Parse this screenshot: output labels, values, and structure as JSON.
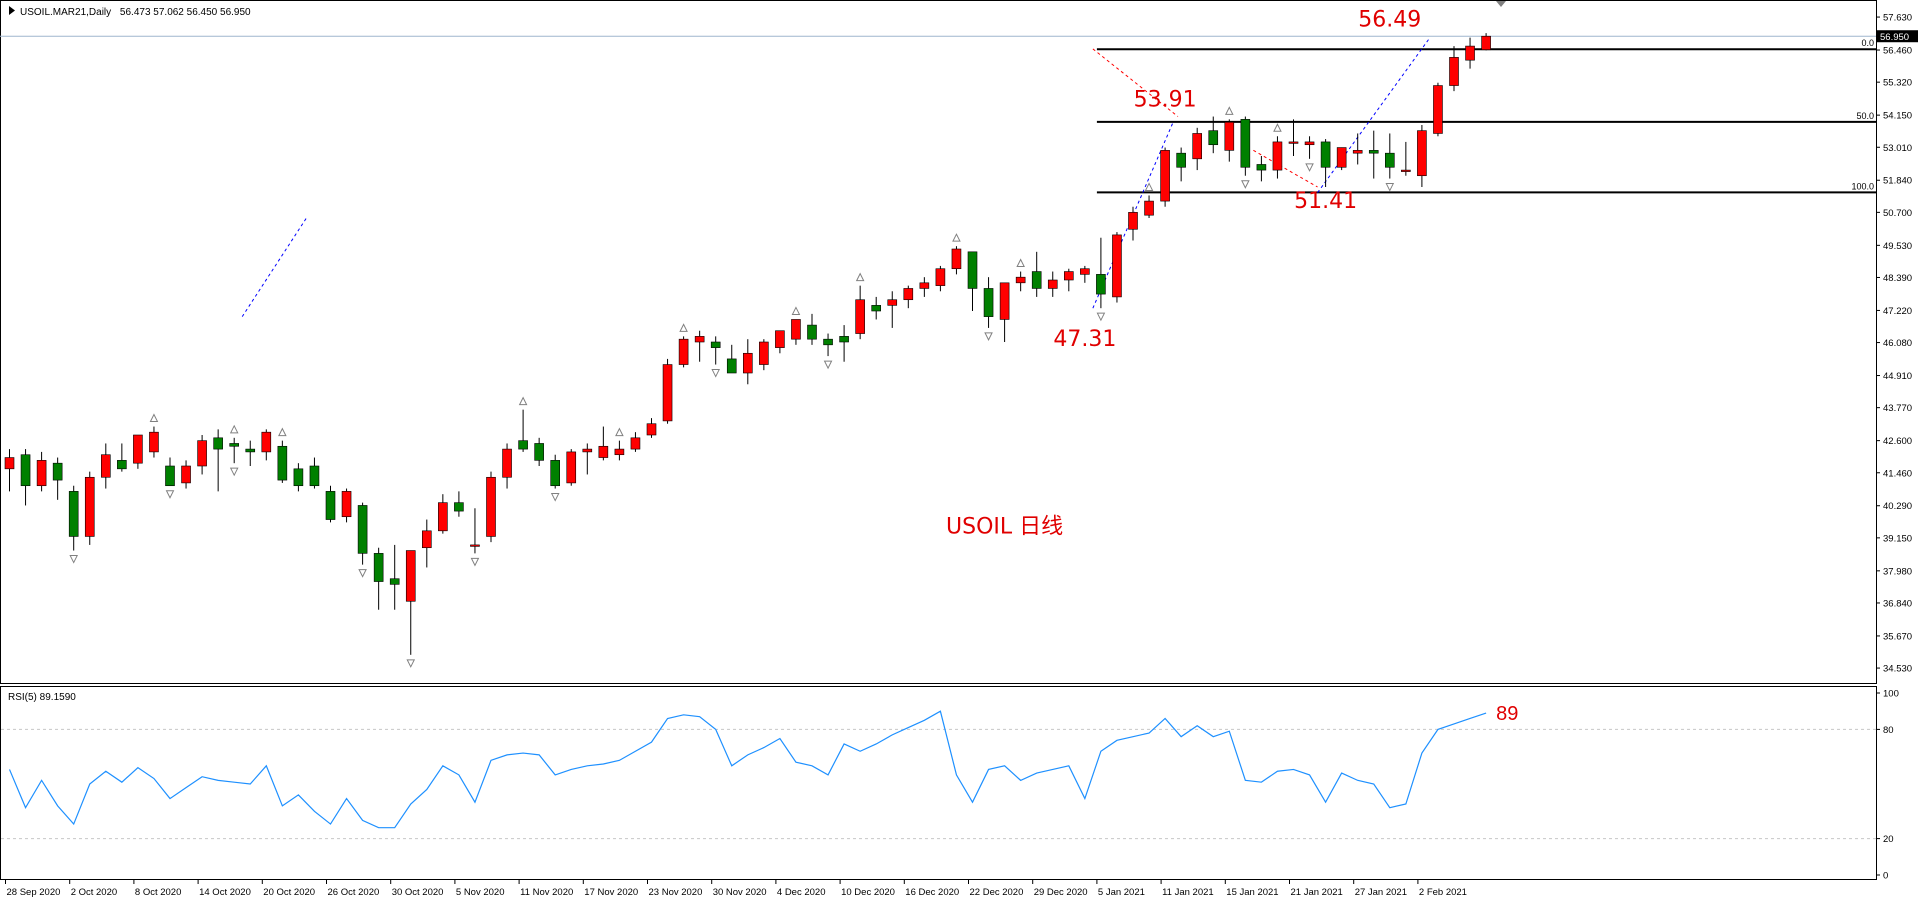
{
  "header": {
    "symbol": "USOIL.MAR21,Daily",
    "ohlc": "56.473 57.062 56.450 56.950"
  },
  "colors": {
    "bull": "#ff0000",
    "bear": "#008000",
    "wick": "#000000",
    "fib": "#000000",
    "rsi": "#1e90ff",
    "grid": "#c8c8c8",
    "annotation": "#e00000",
    "trend": "#0000ff",
    "fractal": "#808080",
    "price_line": "#9fb6cd"
  },
  "chart_data": [
    {
      "type": "candlestick",
      "current_price": 56.95,
      "current_price_label": "56.950",
      "ylim": [
        34.0,
        58.2
      ],
      "yticks": [
        57.63,
        56.46,
        55.32,
        54.15,
        53.01,
        51.84,
        50.7,
        49.53,
        48.39,
        47.22,
        46.08,
        44.91,
        43.77,
        42.6,
        41.46,
        40.29,
        39.15,
        37.98,
        36.84,
        35.67,
        34.53
      ],
      "ytick_labels": [
        "57.630",
        "56.460",
        "55.320",
        "54.150",
        "53.010",
        "51.840",
        "50.700",
        "49.530",
        "48.390",
        "47.220",
        "46.080",
        "44.910",
        "43.770",
        "42.600",
        "41.460",
        "40.290",
        "39.150",
        "37.980",
        "36.840",
        "35.670",
        "34.530"
      ],
      "xtick_labels": [
        "28 Sep 2020",
        "2 Oct 2020",
        "8 Oct 2020",
        "14 Oct 2020",
        "20 Oct 2020",
        "26 Oct 2020",
        "30 Oct 2020",
        "5 Nov 2020",
        "11 Nov 2020",
        "17 Nov 2020",
        "23 Nov 2020",
        "30 Nov 2020",
        "4 Dec 2020",
        "10 Dec 2020",
        "16 Dec 2020",
        "22 Dec 2020",
        "29 Dec 2020",
        "5 Jan 2021",
        "11 Jan 2021",
        "15 Jan 2021",
        "21 Jan 2021",
        "27 Jan 2021",
        "2 Feb 2021"
      ],
      "xtick_index": [
        0,
        4,
        8,
        12,
        16,
        20,
        24,
        28,
        32,
        36,
        40,
        44,
        48,
        52,
        56,
        60,
        64,
        68,
        72,
        76,
        80,
        84,
        88
      ],
      "candles": [
        {
          "d": "28 Sep 2020",
          "o": 41.6,
          "h": 42.3,
          "l": 40.8,
          "c": 42.0
        },
        {
          "d": "29 Sep 2020",
          "o": 42.1,
          "h": 42.3,
          "l": 40.3,
          "c": 41.0
        },
        {
          "d": "30 Sep 2020",
          "o": 41.0,
          "h": 42.2,
          "l": 40.8,
          "c": 41.9
        },
        {
          "d": "1 Oct 2020",
          "o": 41.8,
          "h": 42.0,
          "l": 40.5,
          "c": 41.2
        },
        {
          "d": "2 Oct 2020",
          "o": 40.8,
          "h": 41.0,
          "l": 38.7,
          "c": 39.2
        },
        {
          "d": "5 Oct 2020",
          "o": 39.2,
          "h": 41.5,
          "l": 38.9,
          "c": 41.3
        },
        {
          "d": "6 Oct 2020",
          "o": 41.3,
          "h": 42.5,
          "l": 40.9,
          "c": 42.1
        },
        {
          "d": "7 Oct 2020",
          "o": 41.9,
          "h": 42.5,
          "l": 41.5,
          "c": 41.6
        },
        {
          "d": "8 Oct 2020",
          "o": 41.8,
          "h": 42.8,
          "l": 41.6,
          "c": 42.8
        },
        {
          "d": "9 Oct 2020",
          "o": 42.2,
          "h": 43.1,
          "l": 42.0,
          "c": 42.9
        },
        {
          "d": "12 Oct 2020",
          "o": 41.7,
          "h": 42.0,
          "l": 41.0,
          "c": 41.0
        },
        {
          "d": "13 Oct 2020",
          "o": 41.1,
          "h": 41.9,
          "l": 40.9,
          "c": 41.7
        },
        {
          "d": "14 Oct 2020",
          "o": 41.7,
          "h": 42.8,
          "l": 41.4,
          "c": 42.6
        },
        {
          "d": "15 Oct 2020",
          "o": 42.7,
          "h": 43.0,
          "l": 40.8,
          "c": 42.3
        },
        {
          "d": "16 Oct 2020",
          "o": 42.5,
          "h": 42.7,
          "l": 41.8,
          "c": 42.4
        },
        {
          "d": "19 Oct 2020",
          "o": 42.3,
          "h": 42.6,
          "l": 41.7,
          "c": 42.2
        },
        {
          "d": "20 Oct 2020",
          "o": 42.2,
          "h": 43.0,
          "l": 41.9,
          "c": 42.9
        },
        {
          "d": "21 Oct 2020",
          "o": 42.4,
          "h": 42.6,
          "l": 41.1,
          "c": 41.2
        },
        {
          "d": "22 Oct 2020",
          "o": 41.6,
          "h": 41.8,
          "l": 40.8,
          "c": 41.0
        },
        {
          "d": "23 Oct 2020",
          "o": 41.7,
          "h": 42.0,
          "l": 40.9,
          "c": 41.0
        },
        {
          "d": "26 Oct 2020",
          "o": 40.8,
          "h": 41.0,
          "l": 39.7,
          "c": 39.8
        },
        {
          "d": "27 Oct 2020",
          "o": 39.9,
          "h": 40.9,
          "l": 39.7,
          "c": 40.8
        },
        {
          "d": "28 Oct 2020",
          "o": 40.3,
          "h": 40.4,
          "l": 38.2,
          "c": 38.6
        },
        {
          "d": "29 Oct 2020",
          "o": 38.6,
          "h": 38.8,
          "l": 36.6,
          "c": 37.6
        },
        {
          "d": "30 Oct 2020",
          "o": 37.7,
          "h": 38.9,
          "l": 36.6,
          "c": 37.5
        },
        {
          "d": "2 Nov 2020",
          "o": 36.9,
          "h": 38.7,
          "l": 35.0,
          "c": 38.7
        },
        {
          "d": "3 Nov 2020",
          "o": 38.8,
          "h": 39.8,
          "l": 38.1,
          "c": 39.4
        },
        {
          "d": "4 Nov 2020",
          "o": 39.4,
          "h": 40.7,
          "l": 39.3,
          "c": 40.4
        },
        {
          "d": "5 Nov 2020",
          "o": 40.4,
          "h": 40.8,
          "l": 39.9,
          "c": 40.1
        },
        {
          "d": "6 Nov 2020",
          "o": 38.9,
          "h": 40.2,
          "l": 38.6,
          "c": 38.9
        },
        {
          "d": "9 Nov 2020",
          "o": 39.2,
          "h": 41.5,
          "l": 39.0,
          "c": 41.3
        },
        {
          "d": "10 Nov 2020",
          "o": 41.3,
          "h": 42.5,
          "l": 40.9,
          "c": 42.3
        },
        {
          "d": "11 Nov 2020",
          "o": 42.6,
          "h": 43.7,
          "l": 42.2,
          "c": 42.3
        },
        {
          "d": "12 Nov 2020",
          "o": 42.5,
          "h": 42.7,
          "l": 41.7,
          "c": 41.9
        },
        {
          "d": "13 Nov 2020",
          "o": 41.9,
          "h": 42.1,
          "l": 40.9,
          "c": 41.0
        },
        {
          "d": "16 Nov 2020",
          "o": 41.1,
          "h": 42.3,
          "l": 41.0,
          "c": 42.2
        },
        {
          "d": "17 Nov 2020",
          "o": 42.2,
          "h": 42.5,
          "l": 41.4,
          "c": 42.3
        },
        {
          "d": "18 Nov 2020",
          "o": 42.0,
          "h": 43.1,
          "l": 41.9,
          "c": 42.4
        },
        {
          "d": "19 Nov 2020",
          "o": 42.1,
          "h": 42.6,
          "l": 41.9,
          "c": 42.3
        },
        {
          "d": "20 Nov 2020",
          "o": 42.3,
          "h": 42.9,
          "l": 42.2,
          "c": 42.7
        },
        {
          "d": "23 Nov 2020",
          "o": 42.8,
          "h": 43.4,
          "l": 42.7,
          "c": 43.2
        },
        {
          "d": "24 Nov 2020",
          "o": 43.3,
          "h": 45.5,
          "l": 43.2,
          "c": 45.3
        },
        {
          "d": "25 Nov 2020",
          "o": 45.3,
          "h": 46.3,
          "l": 45.2,
          "c": 46.2
        },
        {
          "d": "26 Nov 2020",
          "o": 46.1,
          "h": 46.5,
          "l": 45.4,
          "c": 46.3
        },
        {
          "d": "27 Nov 2020",
          "o": 46.1,
          "h": 46.3,
          "l": 45.3,
          "c": 45.9
        },
        {
          "d": "30 Nov 2020",
          "o": 45.5,
          "h": 46.0,
          "l": 45.0,
          "c": 45.0
        },
        {
          "d": "1 Dec 2020",
          "o": 45.0,
          "h": 46.2,
          "l": 44.6,
          "c": 45.7
        },
        {
          "d": "2 Dec 2020",
          "o": 45.3,
          "h": 46.2,
          "l": 45.1,
          "c": 46.1
        },
        {
          "d": "3 Dec 2020",
          "o": 45.9,
          "h": 46.5,
          "l": 45.7,
          "c": 46.5
        },
        {
          "d": "4 Dec 2020",
          "o": 46.2,
          "h": 46.9,
          "l": 46.0,
          "c": 46.9
        },
        {
          "d": "7 Dec 2020",
          "o": 46.7,
          "h": 47.1,
          "l": 46.0,
          "c": 46.2
        },
        {
          "d": "8 Dec 2020",
          "o": 46.2,
          "h": 46.4,
          "l": 45.6,
          "c": 46.0
        },
        {
          "d": "9 Dec 2020",
          "o": 46.3,
          "h": 46.7,
          "l": 45.4,
          "c": 46.1
        },
        {
          "d": "10 Dec 2020",
          "o": 46.4,
          "h": 48.1,
          "l": 46.2,
          "c": 47.6
        },
        {
          "d": "11 Dec 2020",
          "o": 47.4,
          "h": 47.7,
          "l": 46.9,
          "c": 47.2
        },
        {
          "d": "14 Dec 2020",
          "o": 47.4,
          "h": 47.9,
          "l": 46.6,
          "c": 47.6
        },
        {
          "d": "15 Dec 2020",
          "o": 47.6,
          "h": 48.1,
          "l": 47.3,
          "c": 48.0
        },
        {
          "d": "16 Dec 2020",
          "o": 48.0,
          "h": 48.4,
          "l": 47.7,
          "c": 48.2
        },
        {
          "d": "17 Dec 2020",
          "o": 48.1,
          "h": 48.8,
          "l": 47.9,
          "c": 48.7
        },
        {
          "d": "18 Dec 2020",
          "o": 48.7,
          "h": 49.5,
          "l": 48.5,
          "c": 49.4
        },
        {
          "d": "21 Dec 2020",
          "o": 49.3,
          "h": 49.3,
          "l": 47.2,
          "c": 48.0
        },
        {
          "d": "22 Dec 2020",
          "o": 48.0,
          "h": 48.4,
          "l": 46.6,
          "c": 47.0
        },
        {
          "d": "23 Dec 2020",
          "o": 46.9,
          "h": 48.2,
          "l": 46.1,
          "c": 48.2
        },
        {
          "d": "24 Dec 2020",
          "o": 48.2,
          "h": 48.6,
          "l": 47.9,
          "c": 48.4
        },
        {
          "d": "28 Dec 2020",
          "o": 48.6,
          "h": 49.3,
          "l": 47.7,
          "c": 48.0
        },
        {
          "d": "29 Dec 2020",
          "o": 48.0,
          "h": 48.6,
          "l": 47.7,
          "c": 48.3
        },
        {
          "d": "30 Dec 2020",
          "o": 48.3,
          "h": 48.7,
          "l": 47.9,
          "c": 48.6
        },
        {
          "d": "31 Dec 2020",
          "o": 48.5,
          "h": 48.8,
          "l": 48.2,
          "c": 48.7
        },
        {
          "d": "4 Jan 2021",
          "o": 48.5,
          "h": 49.8,
          "l": 47.3,
          "c": 47.8
        },
        {
          "d": "5 Jan 2021",
          "o": 47.7,
          "h": 50.0,
          "l": 47.5,
          "c": 49.9
        },
        {
          "d": "6 Jan 2021",
          "o": 50.1,
          "h": 50.9,
          "l": 49.7,
          "c": 50.7
        },
        {
          "d": "7 Jan 2021",
          "o": 50.6,
          "h": 51.3,
          "l": 50.5,
          "c": 51.1
        },
        {
          "d": "8 Jan 2021",
          "o": 51.1,
          "h": 53.0,
          "l": 50.9,
          "c": 52.9
        },
        {
          "d": "11 Jan 2021",
          "o": 52.8,
          "h": 53.0,
          "l": 51.8,
          "c": 52.3
        },
        {
          "d": "12 Jan 2021",
          "o": 52.6,
          "h": 53.7,
          "l": 52.2,
          "c": 53.5
        },
        {
          "d": "13 Jan 2021",
          "o": 53.6,
          "h": 54.1,
          "l": 52.8,
          "c": 53.1
        },
        {
          "d": "14 Jan 2021",
          "o": 52.9,
          "h": 54.0,
          "l": 52.5,
          "c": 53.9
        },
        {
          "d": "15 Jan 2021",
          "o": 54.0,
          "h": 54.1,
          "l": 52.0,
          "c": 52.3
        },
        {
          "d": "18 Jan 2021",
          "o": 52.4,
          "h": 52.7,
          "l": 51.8,
          "c": 52.2
        },
        {
          "d": "19 Jan 2021",
          "o": 52.2,
          "h": 53.4,
          "l": 51.9,
          "c": 53.2
        },
        {
          "d": "20 Jan 2021",
          "o": 53.2,
          "h": 54.0,
          "l": 52.7,
          "c": 53.2
        },
        {
          "d": "21 Jan 2021",
          "o": 53.1,
          "h": 53.4,
          "l": 52.6,
          "c": 53.2
        },
        {
          "d": "22 Jan 2021",
          "o": 53.2,
          "h": 53.3,
          "l": 51.6,
          "c": 52.3
        },
        {
          "d": "25 Jan 2021",
          "o": 52.3,
          "h": 53.0,
          "l": 52.2,
          "c": 53.0
        },
        {
          "d": "26 Jan 2021",
          "o": 52.8,
          "h": 53.5,
          "l": 52.4,
          "c": 52.9
        },
        {
          "d": "27 Jan 2021",
          "o": 52.9,
          "h": 53.6,
          "l": 51.9,
          "c": 52.8
        },
        {
          "d": "28 Jan 2021",
          "o": 52.8,
          "h": 53.5,
          "l": 51.9,
          "c": 52.3
        },
        {
          "d": "29 Jan 2021",
          "o": 52.2,
          "h": 53.2,
          "l": 52.0,
          "c": 52.2
        },
        {
          "d": "1 Feb 2021",
          "o": 52.0,
          "h": 53.8,
          "l": 51.6,
          "c": 53.6
        },
        {
          "d": "2 Feb 2021",
          "o": 53.5,
          "h": 55.3,
          "l": 53.4,
          "c": 55.2
        },
        {
          "d": "3 Feb 2021",
          "o": 55.2,
          "h": 56.6,
          "l": 55.0,
          "c": 56.2
        },
        {
          "d": "4 Feb 2021",
          "o": 56.1,
          "h": 56.9,
          "l": 55.8,
          "c": 56.6
        },
        {
          "d": "5 Feb 2021",
          "o": 56.47,
          "h": 57.06,
          "l": 56.45,
          "c": 56.95
        }
      ],
      "fractals": {
        "up": [
          9,
          14,
          17,
          32,
          38,
          42,
          49,
          53,
          59,
          63,
          71,
          76,
          79
        ],
        "down": [
          4,
          10,
          14,
          22,
          25,
          29,
          34,
          44,
          51,
          61,
          68,
          77,
          81,
          86
        ]
      },
      "fibonacci": {
        "levels": [
          {
            "label": "0.0",
            "price": 56.49
          },
          {
            "label": "50.0",
            "price": 53.91
          },
          {
            "label": "100.0",
            "price": 51.41
          }
        ],
        "start_index": 68
      },
      "annotations": [
        {
          "text": "56.49",
          "index": 86,
          "price": 57.3
        },
        {
          "text": "53.91",
          "index": 72,
          "price": 54.45
        },
        {
          "text": "51.41",
          "index": 82,
          "price": 50.85
        },
        {
          "text": "47.31",
          "index": 67,
          "price": 45.95
        },
        {
          "text": "USOIL 日线",
          "index": 62,
          "price": 39.3
        }
      ],
      "trendlines": [
        {
          "style": "dashed",
          "color": "#0000ff",
          "from": {
            "index": 14.5,
            "price": 47.0
          },
          "to": {
            "index": 18.5,
            "price": 50.5
          }
        },
        {
          "style": "dashed",
          "color": "#0000ff",
          "from": {
            "index": 67.5,
            "price": 47.3
          },
          "to": {
            "index": 72.5,
            "price": 53.9
          }
        },
        {
          "style": "dashed",
          "color": "#0000ff",
          "from": {
            "index": 81.5,
            "price": 51.4
          },
          "to": {
            "index": 88.5,
            "price": 56.9
          }
        },
        {
          "style": "dashed",
          "color": "#ff0000",
          "from": {
            "index": 67.5,
            "price": 56.5
          },
          "to": {
            "index": 72.8,
            "price": 54.1
          }
        },
        {
          "style": "dashed",
          "color": "#ff0000",
          "from": {
            "index": 77.5,
            "price": 52.9
          },
          "to": {
            "index": 81.5,
            "price": 51.6
          }
        }
      ]
    },
    {
      "type": "line",
      "title": "RSI(5) 89.1590",
      "ylim": [
        0,
        100
      ],
      "yticks": [
        100,
        80,
        20,
        0
      ],
      "ytick_labels": [
        "100",
        "80",
        "20",
        "0"
      ],
      "levels": [
        80,
        20
      ],
      "last_label": "89",
      "values": [
        58,
        37,
        52,
        38,
        28,
        50,
        57,
        51,
        59,
        53,
        42,
        48,
        54,
        52,
        51,
        50,
        60,
        38,
        44,
        35,
        28,
        42,
        30,
        26,
        26,
        39,
        47,
        60,
        55,
        40,
        63,
        66,
        67,
        66,
        55,
        58,
        60,
        61,
        63,
        68,
        73,
        86,
        88,
        87,
        80,
        60,
        66,
        70,
        75,
        62,
        60,
        55,
        72,
        68,
        72,
        77,
        81,
        85,
        90,
        55,
        40,
        58,
        60,
        52,
        56,
        58,
        60,
        42,
        68,
        74,
        76,
        78,
        86,
        76,
        82,
        76,
        79,
        52,
        51,
        57,
        58,
        55,
        40,
        56,
        52,
        50,
        37,
        39,
        67,
        80,
        83,
        86,
        89
      ]
    }
  ]
}
